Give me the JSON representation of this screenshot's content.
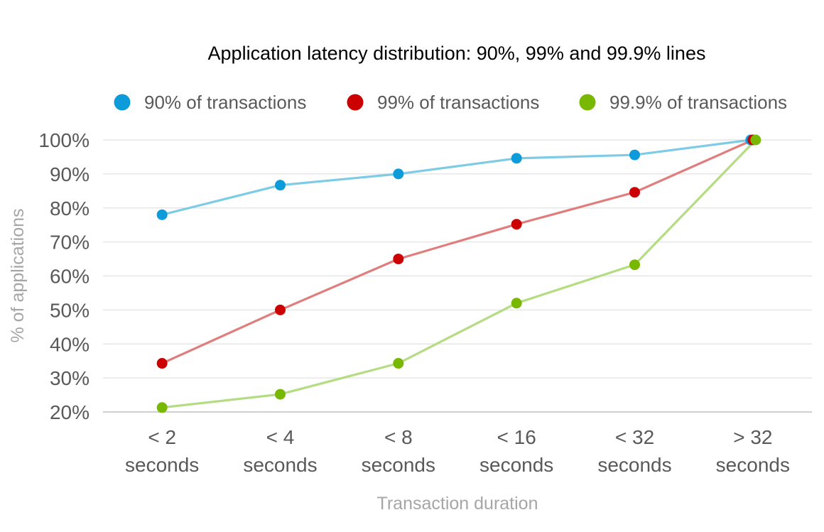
{
  "chart_data": {
    "type": "line",
    "title": "Application latency distribution: 90%, 99% and 99.9% lines",
    "xlabel": "Transaction duration",
    "ylabel": "% of applications",
    "ylim": [
      20,
      100
    ],
    "yticks": [
      "20%",
      "30%",
      "40%",
      "50%",
      "60%",
      "70%",
      "80%",
      "90%",
      "100%"
    ],
    "grid": true,
    "legend_position": "top",
    "categories": [
      [
        "< 2",
        "seconds"
      ],
      [
        "< 4",
        "seconds"
      ],
      [
        "< 8",
        "seconds"
      ],
      [
        "< 16",
        "seconds"
      ],
      [
        "< 32",
        "seconds"
      ],
      [
        "> 32",
        "seconds"
      ]
    ],
    "series": [
      {
        "name": "90% of transactions",
        "marker_color": "#0d9bd9",
        "line_color": "#7ecbe6",
        "values": [
          78,
          86.7,
          90,
          94.6,
          95.6,
          100
        ]
      },
      {
        "name": "99% of transactions",
        "marker_color": "#cc0000",
        "line_color": "#e07d7d",
        "values": [
          34.3,
          50,
          65,
          75.2,
          84.6,
          100
        ]
      },
      {
        "name": "99.9% of transactions",
        "marker_color": "#78b800",
        "line_color": "#b4dd83",
        "values": [
          21.3,
          25.2,
          34.3,
          52,
          63.3,
          100
        ]
      }
    ]
  }
}
